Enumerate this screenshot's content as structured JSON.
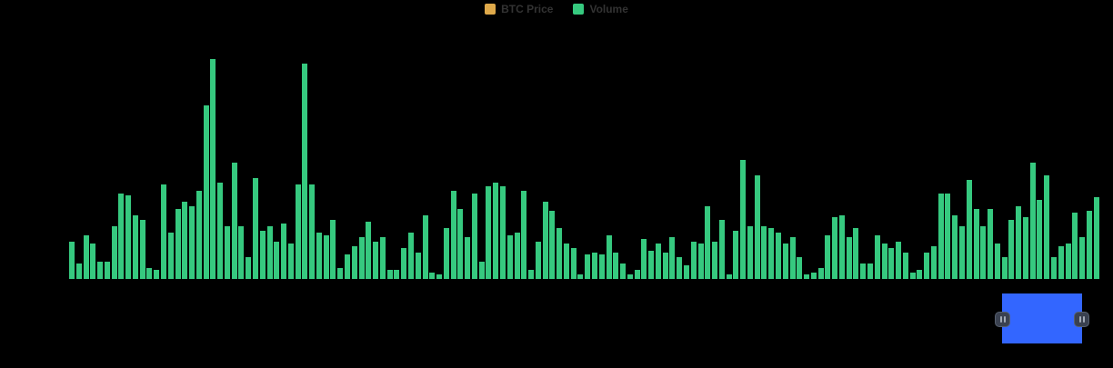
{
  "page": {
    "background": "#000000"
  },
  "legend": {
    "items": [
      {
        "label": "BTC Price",
        "color": "#DFA94A"
      },
      {
        "label": "Volume",
        "color": "#36C97F"
      }
    ],
    "text_color": "#333333"
  },
  "chart_data": {
    "type": "bar",
    "title": "",
    "xlabel": "",
    "ylabel": "",
    "ylim": [
      0,
      100
    ],
    "grid": false,
    "axes_visible": false,
    "legend_position": "top-center",
    "units": "percent_of_tallest_bar",
    "series": [
      {
        "name": "Volume",
        "color": "#36C97F",
        "values": [
          17,
          7,
          20,
          16,
          8,
          8,
          24,
          39,
          38,
          29,
          27,
          5,
          4,
          43,
          21,
          32,
          35,
          33,
          40,
          79,
          100,
          44,
          24,
          53,
          24,
          10,
          46,
          22,
          24,
          17,
          25,
          16,
          43,
          98,
          43,
          21,
          20,
          27,
          5,
          11,
          15,
          19,
          26,
          17,
          19,
          4,
          4,
          14,
          21,
          12,
          29,
          3,
          2,
          23,
          40,
          32,
          19,
          39,
          8,
          42,
          44,
          42,
          20,
          21,
          40,
          4,
          17,
          35,
          31,
          23,
          16,
          14,
          2,
          11,
          12,
          11,
          20,
          12,
          7,
          2,
          4,
          18,
          13,
          16,
          12,
          19,
          10,
          6,
          17,
          16,
          33,
          17,
          27,
          2,
          22,
          54,
          24,
          47,
          24,
          23,
          21,
          16,
          19,
          10,
          2,
          3,
          5,
          20,
          28,
          29,
          19,
          23,
          7,
          7,
          20,
          16,
          14,
          17,
          12,
          3,
          4,
          12,
          15,
          39,
          39,
          29,
          24,
          45,
          32,
          24,
          32,
          16,
          10,
          27,
          33,
          28,
          53,
          36,
          47,
          10,
          15,
          16,
          30,
          19,
          31,
          37
        ]
      },
      {
        "name": "BTC Price",
        "color": "#DFA94A",
        "values": []
      }
    ]
  },
  "navigator": {
    "selection_color": "#3366FF",
    "handle_color": "#3A4150",
    "handle_border_color": "#565F6E",
    "grip_color": "#A2AAB6",
    "handle_icon": "pause-grip"
  }
}
